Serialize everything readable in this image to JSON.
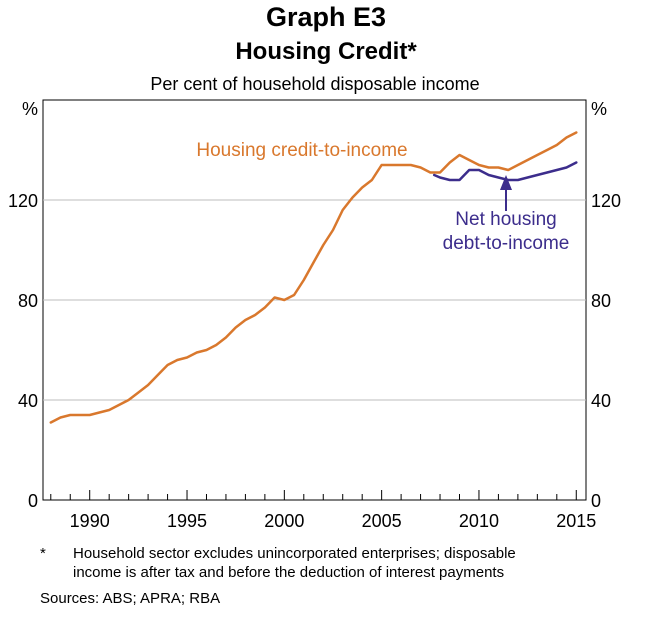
{
  "header": {
    "title": "Graph E3",
    "subtitle": "Housing Credit*",
    "units_caption": "Per cent of household disposable income"
  },
  "footer": {
    "note_marker": "*",
    "note_line1": "Household sector excludes unincorporated enterprises; disposable",
    "note_line2": "income is after tax and before the deduction of interest payments",
    "sources": "Sources:  ABS; APRA; RBA"
  },
  "colors": {
    "housing_credit": "#d9782d",
    "net_housing_debt": "#3c2d8c",
    "grid": "#bdbdbd",
    "axis": "#000000"
  },
  "chart_data": {
    "type": "line",
    "ylim": [
      0,
      160
    ],
    "xlim": [
      1987.6,
      2015.5
    ],
    "y_ticks": [
      0,
      40,
      80,
      120
    ],
    "y_tick_labels": [
      "0",
      "40",
      "80",
      "120"
    ],
    "y_unit_left": "%",
    "y_unit_right": "%",
    "x_ticks": [
      1990,
      1995,
      2000,
      2005,
      2010,
      2015
    ],
    "x_tick_labels": [
      "1990",
      "1995",
      "2000",
      "2005",
      "2010",
      "2015"
    ],
    "grid": true,
    "series": [
      {
        "name": "Housing credit-to-income",
        "label_line1": "Housing credit-to-income",
        "x": [
          1988.0,
          1988.5,
          1989.0,
          1989.5,
          1990.0,
          1990.5,
          1991.0,
          1991.5,
          1992.0,
          1992.5,
          1993.0,
          1993.5,
          1994.0,
          1994.5,
          1995.0,
          1995.5,
          1996.0,
          1996.5,
          1997.0,
          1997.5,
          1998.0,
          1998.5,
          1999.0,
          1999.5,
          2000.0,
          2000.5,
          2001.0,
          2001.5,
          2002.0,
          2002.5,
          2003.0,
          2003.5,
          2004.0,
          2004.5,
          2005.0,
          2005.5,
          2006.0,
          2006.5,
          2007.0,
          2007.5,
          2008.0,
          2008.5,
          2009.0,
          2009.5,
          2010.0,
          2010.5,
          2011.0,
          2011.5,
          2012.0,
          2012.5,
          2013.0,
          2013.5,
          2014.0,
          2014.5,
          2015.0
        ],
        "values": [
          31,
          33,
          34,
          34,
          34,
          35,
          36,
          38,
          40,
          43,
          46,
          50,
          54,
          56,
          57,
          59,
          60,
          62,
          65,
          69,
          72,
          74,
          77,
          81,
          80,
          82,
          88,
          95,
          102,
          108,
          116,
          121,
          125,
          128,
          134,
          134,
          134,
          134,
          133,
          131,
          131,
          135,
          138,
          136,
          134,
          133,
          133,
          132,
          134,
          136,
          138,
          140,
          142,
          145,
          147
        ]
      },
      {
        "name": "Net housing debt-to-income",
        "label_line1": "Net housing",
        "label_line2": "debt-to-income",
        "x": [
          2007.7,
          2008.0,
          2008.5,
          2009.0,
          2009.5,
          2010.0,
          2010.5,
          2011.0,
          2011.5,
          2012.0,
          2012.5,
          2013.0,
          2013.5,
          2014.0,
          2014.5,
          2015.0
        ],
        "values": [
          130,
          129,
          128,
          128,
          132,
          132,
          130,
          129,
          128,
          128,
          129,
          130,
          131,
          132,
          133,
          135
        ]
      }
    ]
  }
}
